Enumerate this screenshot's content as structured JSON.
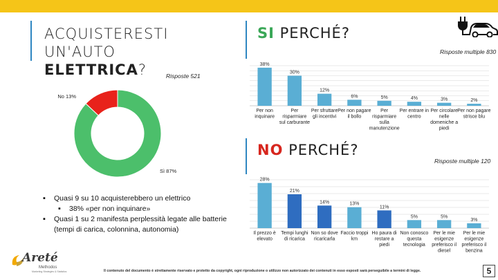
{
  "slide": {
    "title_line1": "ACQUISTERESTI UN'AUTO",
    "title_line2": "ELETTRICA",
    "title_qmark": "?",
    "page_number": "5",
    "footer": "Il contenuto del documento è strettamente riservato e protetto da copyright, ogni riproduzione o utilizzo non autorizzato dei contenuti in esso esposti sarà perseguibile a termini di legge.",
    "logo": {
      "name": "Areté",
      "sub": "Methodos",
      "tagline": "Marketing Strategies & Statistics"
    }
  },
  "colors": {
    "topbar": "#f5c518",
    "accent_line": "#2e86c1",
    "pie_yes": "#4cbf6b",
    "pie_no": "#e8221b",
    "bar_yes": "#5aaed4",
    "bar_no_light": "#5aaed4",
    "bar_no_dark": "#2f6dc0"
  },
  "si_section": {
    "prefix": "SI",
    "rest": " PERCHÉ?",
    "note": "Risposte multiple 830"
  },
  "no_section": {
    "prefix": "NO",
    "rest": " PERCHÉ?",
    "note": "Risposte multiple 120"
  },
  "pie_note": "Risposte 521",
  "bullets": [
    {
      "level": 1,
      "text": "Quasi 9 su 10 acquisterebbero un elettrico"
    },
    {
      "level": 2,
      "text": "38% «per non inquinare»"
    },
    {
      "level": 1,
      "text": "Quasi 1 su 2 manifesta perplessità legate alle batterie (tempi di carica, colonnina, autonomia)"
    }
  ],
  "chart_data": [
    {
      "type": "pie",
      "style": "donut",
      "categories": [
        "Sì",
        "No"
      ],
      "values": [
        87,
        13
      ],
      "labels": [
        "Sì 87%",
        "No 13%"
      ]
    },
    {
      "type": "bar",
      "categories": [
        "Per non inquinare",
        "Per risparmiare sul carburante",
        "Per sfruttare gli incentivi",
        "Per non pagare il bollo",
        "Per risparmiare sulla manutenzione",
        "Per entrare in centro",
        "Per circolare nelle domeniche a piedi",
        "Per non pagare strisce blu"
      ],
      "values": [
        38,
        30,
        12,
        6,
        5,
        4,
        3,
        2
      ],
      "data_labels": [
        "38%",
        "30%",
        "12%",
        "6%",
        "5%",
        "4%",
        "3%",
        "2%"
      ],
      "ylim": [
        0,
        40
      ],
      "grid": true
    },
    {
      "type": "bar",
      "categories": [
        "Il prezzo è elevato",
        "Tempi lunghi di ricarica",
        "Non so dove ricaricarla",
        "Faccio troppi km",
        "Ho paura di restare a piedi",
        "Non conosco questa tecnologia",
        "Per le mie esigenze preferisco il diesel",
        "Per le mie esigenze preferisco il benzina"
      ],
      "values": [
        28,
        21,
        14,
        13,
        11,
        5,
        5,
        3
      ],
      "data_labels": [
        "28%",
        "21%",
        "14%",
        "13%",
        "11%",
        "5%",
        "5%",
        "3%"
      ],
      "highlight": [
        false,
        true,
        true,
        false,
        true,
        false,
        false,
        false
      ],
      "ylim": [
        0,
        30
      ],
      "grid": true
    }
  ]
}
